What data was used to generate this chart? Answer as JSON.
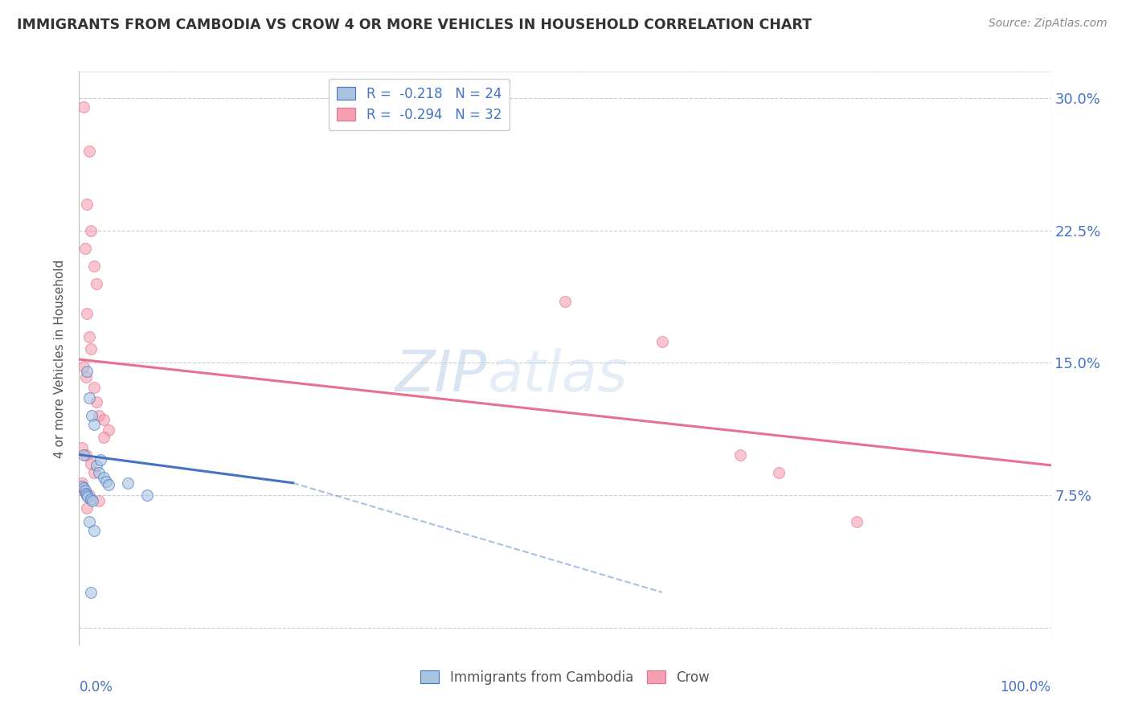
{
  "title": "IMMIGRANTS FROM CAMBODIA VS CROW 4 OR MORE VEHICLES IN HOUSEHOLD CORRELATION CHART",
  "source_text": "Source: ZipAtlas.com",
  "ylabel": "4 or more Vehicles in Household",
  "watermark": "ZIPatlas",
  "legend_r_blue": "R =  -0.218",
  "legend_n_blue": "N = 24",
  "legend_r_pink": "R =  -0.294",
  "legend_n_pink": "N = 32",
  "ytick_vals": [
    0.0,
    0.075,
    0.15,
    0.225,
    0.3
  ],
  "ytick_labels_right": [
    "",
    "7.5%",
    "15.0%",
    "22.5%",
    "30.0%"
  ],
  "blue_color": "#a8c4e0",
  "pink_color": "#f4a0b0",
  "blue_line_color": "#4472c4",
  "pink_line_color": "#e87090",
  "blue_scatter": [
    [
      0.005,
      0.098
    ],
    [
      0.008,
      0.145
    ],
    [
      0.01,
      0.13
    ],
    [
      0.013,
      0.12
    ],
    [
      0.015,
      0.115
    ],
    [
      0.018,
      0.092
    ],
    [
      0.02,
      0.088
    ],
    [
      0.022,
      0.095
    ],
    [
      0.025,
      0.085
    ],
    [
      0.028,
      0.083
    ],
    [
      0.03,
      0.081
    ],
    [
      0.003,
      0.08
    ],
    [
      0.005,
      0.079
    ],
    [
      0.006,
      0.078
    ],
    [
      0.007,
      0.076
    ],
    [
      0.008,
      0.075
    ],
    [
      0.009,
      0.074
    ],
    [
      0.012,
      0.073
    ],
    [
      0.014,
      0.072
    ],
    [
      0.05,
      0.082
    ],
    [
      0.07,
      0.075
    ],
    [
      0.01,
      0.06
    ],
    [
      0.015,
      0.055
    ],
    [
      0.012,
      0.02
    ]
  ],
  "pink_scatter": [
    [
      0.005,
      0.295
    ],
    [
      0.01,
      0.27
    ],
    [
      0.008,
      0.24
    ],
    [
      0.012,
      0.225
    ],
    [
      0.006,
      0.215
    ],
    [
      0.015,
      0.205
    ],
    [
      0.018,
      0.195
    ],
    [
      0.008,
      0.178
    ],
    [
      0.01,
      0.165
    ],
    [
      0.012,
      0.158
    ],
    [
      0.005,
      0.148
    ],
    [
      0.007,
      0.142
    ],
    [
      0.015,
      0.136
    ],
    [
      0.018,
      0.128
    ],
    [
      0.02,
      0.12
    ],
    [
      0.025,
      0.118
    ],
    [
      0.03,
      0.112
    ],
    [
      0.025,
      0.108
    ],
    [
      0.003,
      0.102
    ],
    [
      0.007,
      0.098
    ],
    [
      0.012,
      0.093
    ],
    [
      0.015,
      0.088
    ],
    [
      0.003,
      0.082
    ],
    [
      0.005,
      0.078
    ],
    [
      0.01,
      0.075
    ],
    [
      0.02,
      0.072
    ],
    [
      0.008,
      0.068
    ],
    [
      0.5,
      0.185
    ],
    [
      0.6,
      0.162
    ],
    [
      0.68,
      0.098
    ],
    [
      0.72,
      0.088
    ],
    [
      0.8,
      0.06
    ]
  ],
  "blue_trendline_solid": [
    [
      0.0,
      0.098
    ],
    [
      0.22,
      0.082
    ]
  ],
  "blue_trendline_dashed": [
    [
      0.22,
      0.082
    ],
    [
      0.6,
      0.02
    ]
  ],
  "pink_trendline": [
    [
      0.0,
      0.152
    ],
    [
      1.0,
      0.092
    ]
  ],
  "xlim": [
    0.0,
    1.0
  ],
  "ylim": [
    -0.01,
    0.315
  ],
  "background_color": "#ffffff",
  "grid_color": "#cccccc",
  "title_color": "#333333",
  "axis_color": "#4472c4",
  "scatter_size": 100,
  "scatter_alpha": 0.6
}
